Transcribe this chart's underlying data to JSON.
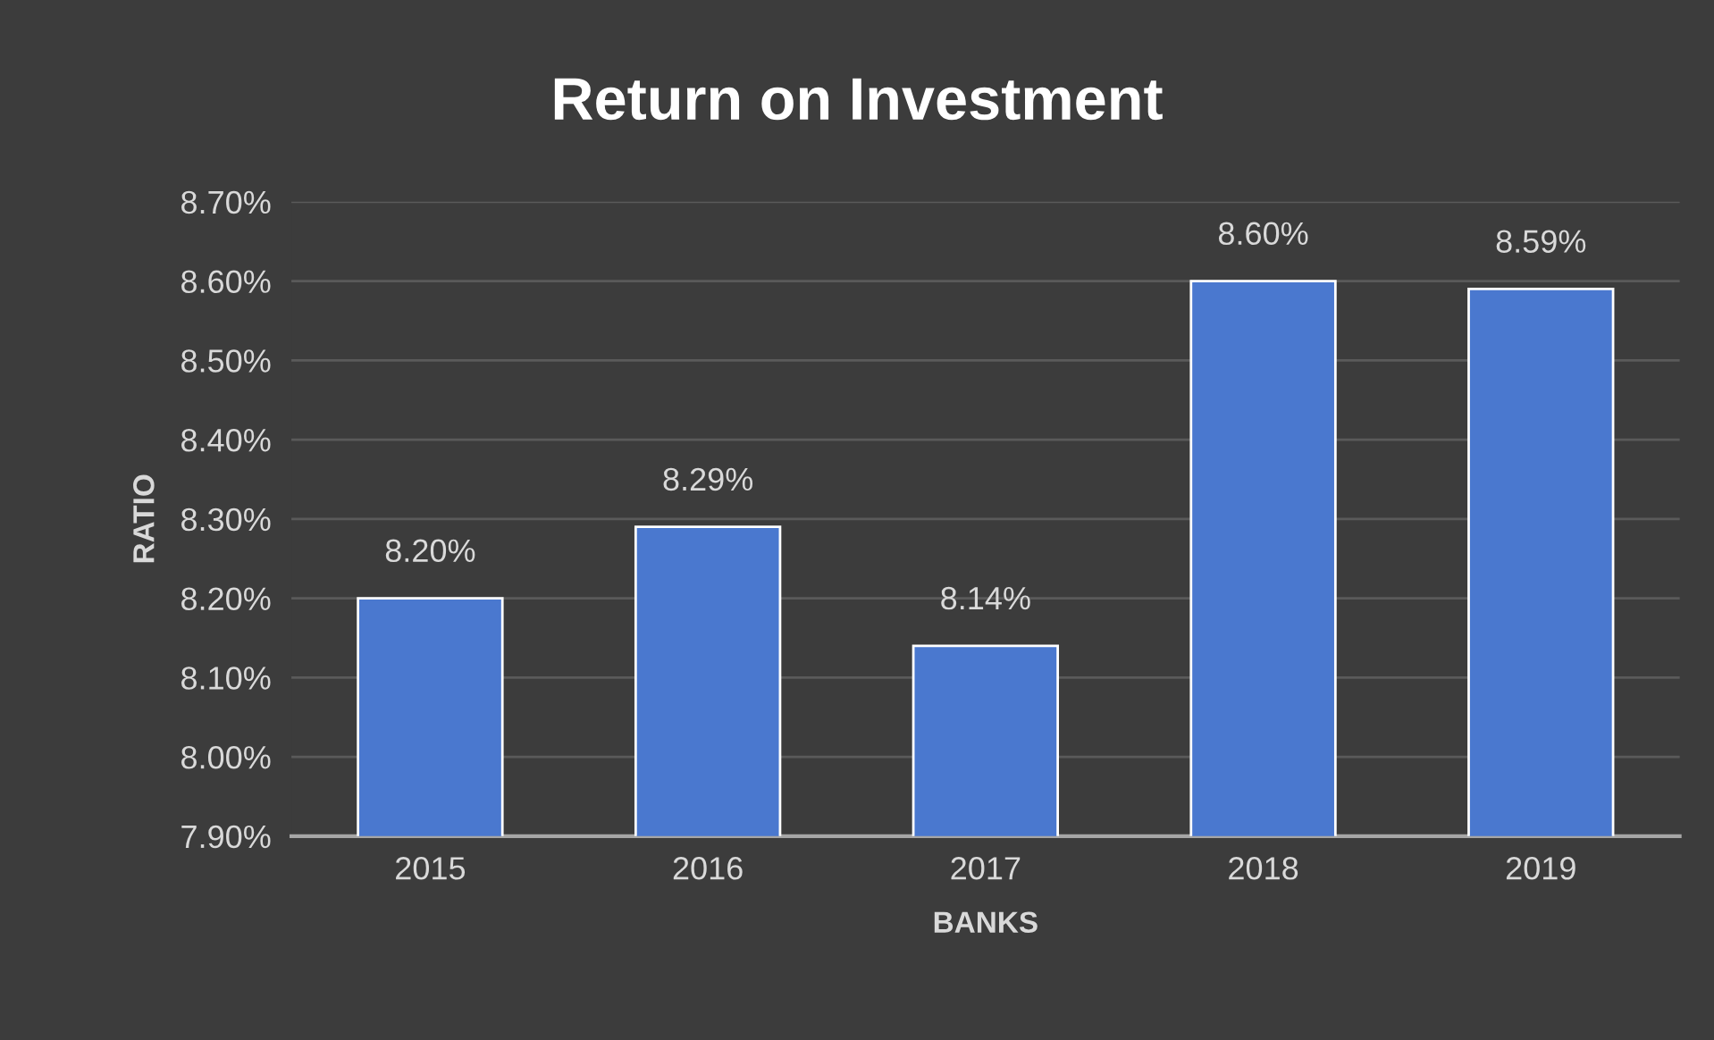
{
  "chart_data": {
    "type": "bar",
    "title": "Return on Investment",
    "xlabel": "BANKS",
    "ylabel": "RATIO",
    "categories": [
      "2015",
      "2016",
      "2017",
      "2018",
      "2019"
    ],
    "series": [
      {
        "color": "#4a78cf",
        "values": [
          8.2,
          8.29,
          8.14,
          8.6,
          8.59
        ],
        "value_labels": [
          "8.20%",
          "8.29%",
          "8.14%",
          "8.60%",
          "8.59%"
        ]
      }
    ],
    "ylim": [
      7.9,
      8.7
    ],
    "yticks": [
      {
        "value": 7.9,
        "label": "7.90%"
      },
      {
        "value": 8.0,
        "label": "8.00%"
      },
      {
        "value": 8.1,
        "label": "8.10%"
      },
      {
        "value": 8.2,
        "label": "8.20%"
      },
      {
        "value": 8.3,
        "label": "8.30%"
      },
      {
        "value": 8.4,
        "label": "8.40%"
      },
      {
        "value": 8.5,
        "label": "8.50%"
      },
      {
        "value": 8.6,
        "label": "8.60%"
      },
      {
        "value": 8.7,
        "label": "8.70%"
      }
    ],
    "grid": "y",
    "legend": false
  }
}
